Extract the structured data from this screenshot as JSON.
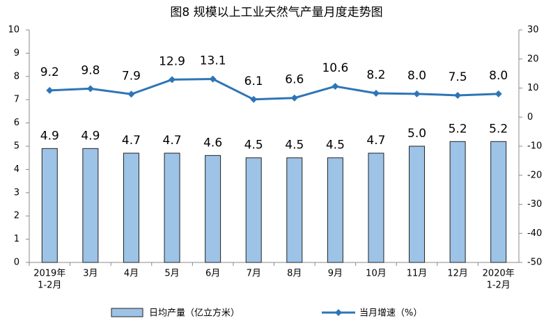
{
  "chart_data": {
    "type": "bar-line",
    "title": "图8 规模以上工业天然气产量月度走势图",
    "categories": [
      [
        "2019年",
        "1-2月"
      ],
      [
        "3月"
      ],
      [
        "4月"
      ],
      [
        "5月"
      ],
      [
        "6月"
      ],
      [
        "7月"
      ],
      [
        "8月"
      ],
      [
        "9月"
      ],
      [
        "10月"
      ],
      [
        "11月"
      ],
      [
        "12月"
      ],
      [
        "2020年",
        "1-2月"
      ]
    ],
    "series": [
      {
        "name": "日均产量（亿立方米）",
        "type": "bar",
        "color": "#9DC3E6",
        "values": [
          4.9,
          4.9,
          4.7,
          4.7,
          4.6,
          4.5,
          4.5,
          4.5,
          4.7,
          5.0,
          5.2,
          5.2
        ],
        "value_labels": [
          "4.9",
          "4.9",
          "4.7",
          "4.7",
          "4.6",
          "4.5",
          "4.5",
          "4.5",
          "4.7",
          "5.0",
          "5.2",
          "5.2"
        ]
      },
      {
        "name": "当月增速（%）",
        "type": "line",
        "axis": "y2",
        "color": "#2E75B6",
        "values": [
          9.2,
          9.8,
          7.9,
          12.9,
          13.1,
          6.1,
          6.6,
          10.6,
          8.2,
          8.0,
          7.5,
          8.0
        ],
        "value_labels": [
          "9.2",
          "9.8",
          "7.9",
          "12.9",
          "13.1",
          "6.1",
          "6.6",
          "10.6",
          "8.2",
          "8.0",
          "7.5",
          "8.0"
        ]
      }
    ],
    "ylim": [
      0,
      10
    ],
    "yticks": [
      0,
      1,
      2,
      3,
      4,
      5,
      6,
      7,
      8,
      9,
      10
    ],
    "y2lim": [
      -50,
      30
    ],
    "y2ticks": [
      -50,
      -40,
      -30,
      -20,
      -10,
      0,
      10,
      20,
      30
    ]
  }
}
